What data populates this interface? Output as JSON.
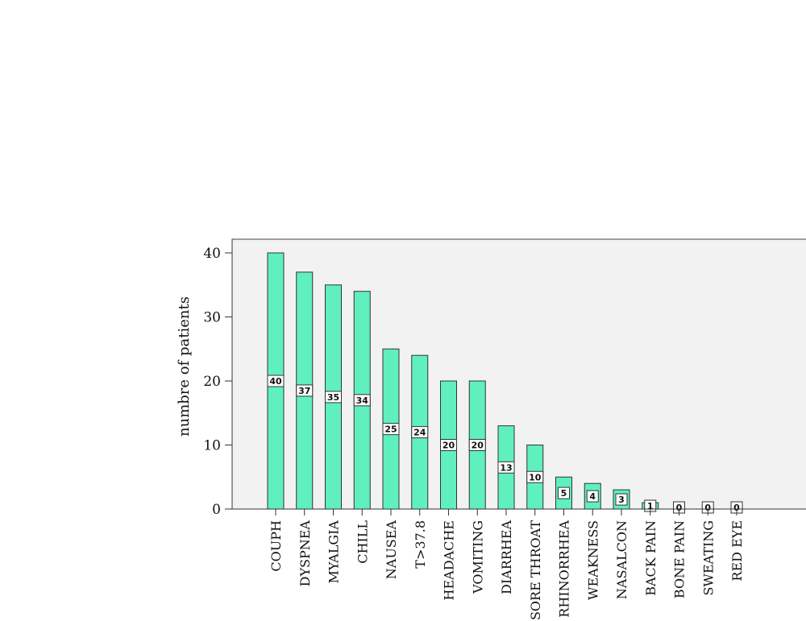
{
  "chart_data": {
    "type": "bar",
    "title": "",
    "xlabel": "",
    "ylabel": "numbre of patients",
    "ylim": [
      0,
      40
    ],
    "yticks": [
      0,
      10,
      20,
      30,
      40
    ],
    "categories": [
      "COUPH",
      "DYSPNEA",
      "MYALGIA",
      "CHILL",
      "NAUSEA",
      "T>37.8",
      "HEADACHE",
      "VOMITING",
      "DIARRHEA",
      "SORE THROAT",
      "RHINORRHEA",
      "WEAKNESS",
      "NASALCON",
      "BACK PAIN",
      "BONE PAIN",
      "SWEATING",
      "RED EYE"
    ],
    "values": [
      40,
      37,
      35,
      34,
      25,
      24,
      20,
      20,
      13,
      10,
      5,
      4,
      3,
      1,
      0,
      0,
      0
    ],
    "data_labels": [
      "40",
      "37",
      "35",
      "34",
      "25",
      "24",
      "20",
      "20",
      "13",
      "10",
      "5",
      "4",
      "3",
      "1",
      "0",
      "0",
      "0"
    ],
    "colors": {
      "bar": "#5ff0bd",
      "plot_bg": "#f2f2f2",
      "edge": "#333333"
    },
    "grid": false,
    "legend": "none"
  }
}
